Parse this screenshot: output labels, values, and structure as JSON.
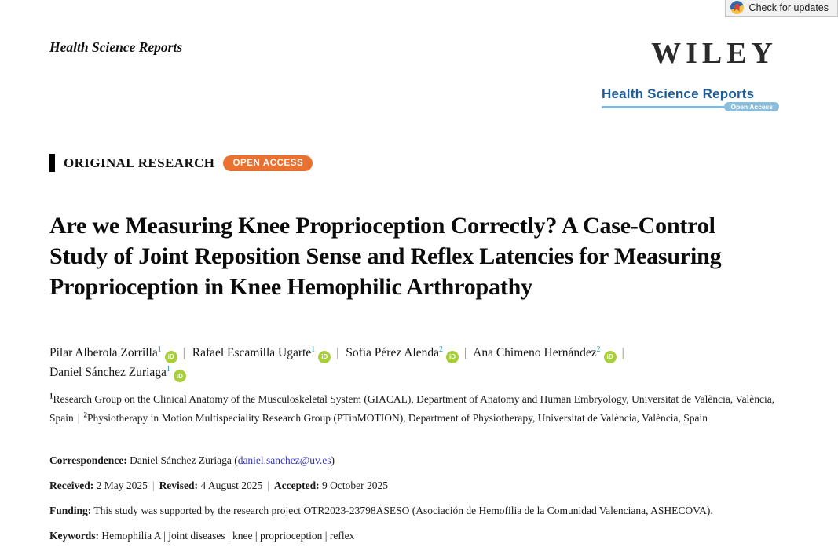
{
  "sep": "|",
  "header": {
    "running_head": "Health Science Reports",
    "check_updates_label": "Check for updates",
    "publisher_logo": "WILEY",
    "brand_journal": "Health Science Reports",
    "brand_open_access": "Open Access"
  },
  "article": {
    "section_label": "ORIGINAL RESEARCH",
    "open_access_badge": "OPEN ACCESS",
    "title": "Are we Measuring Knee Proprioception Correctly? A Case-Control Study of Joint Reposition Sense and Reflex Latencies for Measuring Proprioception in Knee Hemophilic Arthropathy"
  },
  "orcid_label": "iD",
  "authors": [
    {
      "name": "Pilar Alberola Zorrilla",
      "sup": "1"
    },
    {
      "name": "Rafael Escamilla Ugarte",
      "sup": "1"
    },
    {
      "name": "Sofía Pérez Alenda",
      "sup": "2"
    },
    {
      "name": "Ana Chimeno Hernández",
      "sup": "2"
    },
    {
      "name": "Daniel Sánchez Zuriaga",
      "sup": "1"
    }
  ],
  "affiliations": [
    {
      "sup": "1",
      "text": "Research Group on the Clinical Anatomy of the Musculoskeletal System (GIACAL), Department of Anatomy and Human Embryology, Universitat de València, València, Spain"
    },
    {
      "sup": "2",
      "text": "Physiotherapy in Motion Multispeciality Research Group (PTinMOTION), Department of Physiotherapy, Universitat de València, València, Spain"
    }
  ],
  "meta": {
    "correspondence": {
      "label": "Correspondence:",
      "name": "Daniel Sánchez Zuriaga",
      "email": "daniel.sanchez@uv.es"
    },
    "dates": [
      {
        "label": "Received:",
        "value": "2 May 2025"
      },
      {
        "label": "Revised:",
        "value": "4 August 2025"
      },
      {
        "label": "Accepted:",
        "value": "9 October 2025"
      }
    ],
    "funding": {
      "label": "Funding:",
      "text": "This study was supported by the research project OTR2023-23798ASESO (Asociación de Hemofilia de la Comunidad Valenciana, ASHECOVA)."
    },
    "keywords": {
      "label": "Keywords:",
      "items": [
        "Hemophilia A",
        "joint diseases",
        "knee",
        "proprioception",
        "reflex"
      ]
    }
  },
  "colors": {
    "accent_orange": "#E97132",
    "orcid_green": "#A7CE3B",
    "brand_blue": "#1E5C99",
    "brand_light_blue": "#7FB8DC",
    "superscript_teal": "#2E9BB5",
    "email_blue": "#3333CC"
  }
}
